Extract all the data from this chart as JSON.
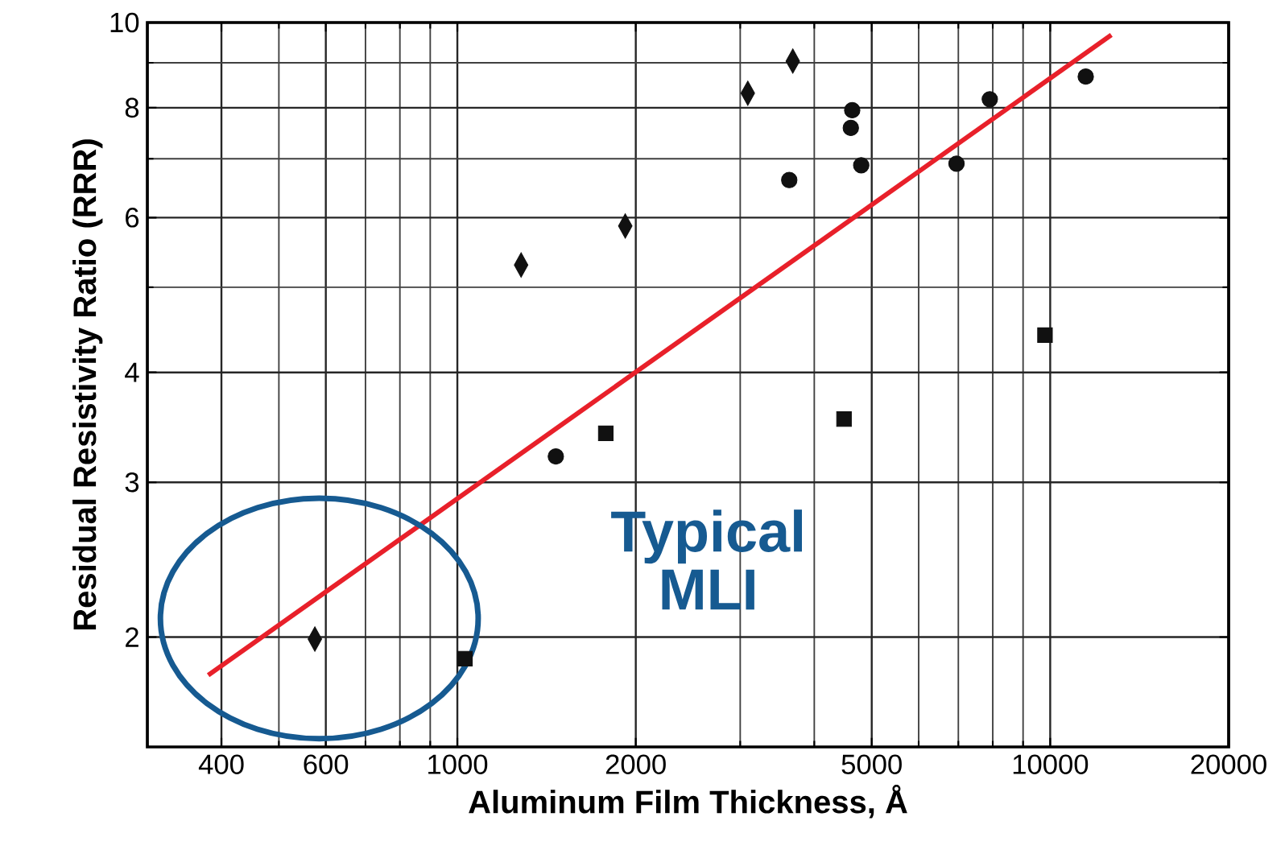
{
  "chart_data": {
    "type": "scatter",
    "xlabel": "Aluminum Film Thickness,  Å",
    "ylabel": "Residual Resistivity Ratio  (RRR)",
    "log": "xy",
    "grid": true,
    "xlim": [
      300,
      20000
    ],
    "ylim": [
      1.5,
      10
    ],
    "xticks": [
      400,
      600,
      1000,
      2000,
      5000,
      10000,
      20000
    ],
    "yticks": [
      2,
      3,
      4,
      6,
      8,
      10
    ],
    "annotations": [
      "Typical MLI"
    ],
    "series": [
      {
        "marker": "diamond",
        "color": "#111111",
        "x": [
          575,
          1281,
          1920,
          3090,
          3680
        ],
        "values": [
          1.99,
          5.3,
          5.87,
          8.31,
          9.04
        ]
      },
      {
        "marker": "circle",
        "color": "#111111",
        "x": [
          1466,
          3630,
          4610,
          4635,
          4800,
          6950,
          7910,
          11480
        ],
        "values": [
          3.21,
          6.62,
          7.59,
          7.95,
          6.88,
          6.91,
          8.18,
          8.68
        ]
      },
      {
        "marker": "square",
        "color": "#111111",
        "x": [
          1030,
          1780,
          4490,
          9800
        ],
        "values": [
          1.89,
          3.41,
          3.54,
          4.41
        ]
      },
      {
        "type": "line",
        "marker": "none",
        "color": "#e8202a",
        "x": [
          380,
          12680
        ],
        "values": [
          1.81,
          9.68
        ]
      }
    ]
  }
}
